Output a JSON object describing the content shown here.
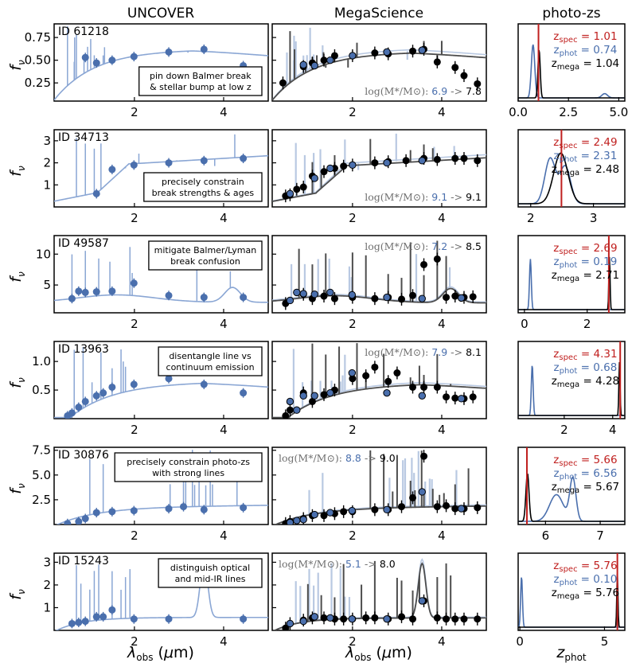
{
  "colors": {
    "uncover": "#4a6fad",
    "uncover_light": "#8aa6d4",
    "mega_light": "#b9c9e2",
    "black": "#000000",
    "gray": "#4d4d4d",
    "spec": "#c0201f",
    "phot": "#4a6fad"
  },
  "columns": {
    "uncover": "UNCOVER",
    "mega": "MegaScience",
    "photoz": "photo-zs"
  },
  "labels": {
    "ylabel": "f_ν",
    "xlabel_sed": "λobs (μm)",
    "xlabel_pz": "zphot",
    "mass_prefix": "log(M*/M⊙):",
    "arrow": "->",
    "zspec": "zspec =",
    "zphot": "zphot =",
    "zmega": "zmega ="
  },
  "chart_data": [
    {
      "type": "line",
      "id": "ID 61218",
      "annotation": [
        "pin down Balmer break",
        "& stellar bump at low z"
      ],
      "sed_xlim": [
        0.2,
        5.0
      ],
      "sed_ylim": [
        0.05,
        0.9
      ],
      "sed_yticks": [
        0.25,
        0.5,
        0.75
      ],
      "sed_yticklabels": [
        "0.25",
        "0.50",
        "0.75"
      ],
      "sed_xticks": [
        2,
        4
      ],
      "uncover_phot": {
        "x": [
          0.9,
          1.15,
          1.5,
          1.99,
          2.77,
          3.56,
          4.44
        ],
        "y": [
          0.53,
          0.47,
          0.5,
          0.54,
          0.59,
          0.62,
          0.44
        ]
      },
      "mega_black": {
        "x": [
          0.44,
          0.9,
          1.1,
          1.36,
          1.6,
          2.0,
          2.5,
          2.8,
          3.35,
          3.6,
          3.9,
          4.3,
          4.5,
          4.8
        ],
        "y": [
          0.25,
          0.43,
          0.47,
          0.5,
          0.55,
          0.55,
          0.58,
          0.57,
          0.6,
          0.62,
          0.48,
          0.42,
          0.33,
          0.24
        ]
      },
      "mega_blue": {
        "x": [
          0.9,
          1.15,
          1.5,
          2.0,
          2.77,
          3.56
        ],
        "y": [
          0.45,
          0.44,
          0.5,
          0.55,
          0.59,
          0.61
        ]
      },
      "mass_blue": "6.9",
      "mass_black": "7.8",
      "mass_pos": "bottom-right",
      "pz_xlim": [
        0,
        5.3
      ],
      "pz_xticks": [
        0,
        2.5,
        5
      ],
      "pz_xticklabels": [
        "0.0",
        "2.5",
        "5.0"
      ],
      "zspec": "1.01",
      "zphot": "0.74",
      "zmega": "1.04",
      "zspec_val": 1.01
    },
    {
      "type": "line",
      "id": "ID 34713",
      "annotation": [
        "precisely constrain",
        "break strengths & ages"
      ],
      "sed_xlim": [
        0.2,
        5.0
      ],
      "sed_ylim": [
        0.0,
        3.5
      ],
      "sed_yticks": [
        1,
        2,
        3
      ],
      "sed_yticklabels": [
        "1",
        "2",
        "3"
      ],
      "sed_xticks": [
        2,
        4
      ],
      "uncover_phot": {
        "x": [
          1.15,
          1.5,
          1.99,
          2.77,
          3.56,
          4.44
        ],
        "y": [
          0.6,
          1.7,
          1.9,
          2.0,
          2.1,
          2.2
        ]
      },
      "mega_black": {
        "x": [
          0.5,
          0.6,
          0.75,
          0.9,
          1.1,
          1.36,
          1.6,
          1.8,
          2.0,
          2.5,
          2.8,
          3.2,
          3.6,
          3.9,
          4.3,
          4.5,
          4.8
        ],
        "y": [
          0.5,
          0.55,
          0.8,
          0.9,
          1.4,
          1.6,
          1.75,
          1.85,
          1.9,
          2.0,
          2.05,
          2.1,
          2.2,
          2.15,
          2.2,
          2.2,
          2.1
        ]
      },
      "mega_blue": {
        "x": [
          0.6,
          1.15,
          1.5,
          2.0,
          2.77,
          3.56
        ],
        "y": [
          0.6,
          1.3,
          1.75,
          1.9,
          2.0,
          2.1
        ]
      },
      "mass_blue": "9.1",
      "mass_black": "9.1",
      "mass_pos": "bottom-right",
      "pz_xlim": [
        1.8,
        3.5
      ],
      "pz_xticks": [
        2,
        3
      ],
      "pz_xticklabels": [
        "2",
        "3"
      ],
      "zspec": "2.49",
      "zphot": "2.31",
      "zmega": "2.48",
      "zspec_val": 2.49
    },
    {
      "type": "line",
      "id": "ID 49587",
      "annotation": [
        "mitigate Balmer/Lyman",
        "break confusion"
      ],
      "sed_xlim": [
        0.2,
        5.0
      ],
      "sed_ylim": [
        0.5,
        13
      ],
      "sed_yticks": [
        5,
        10
      ],
      "sed_yticklabels": [
        "5",
        "10"
      ],
      "sed_xticks": [
        2,
        4
      ],
      "uncover_phot": {
        "x": [
          0.6,
          0.75,
          0.9,
          1.15,
          1.5,
          1.99,
          2.77,
          3.56,
          4.44
        ],
        "y": [
          2.8,
          4.0,
          3.8,
          3.9,
          4.0,
          5.3,
          3.3,
          3.0,
          3.0
        ]
      },
      "mega_black": {
        "x": [
          0.5,
          0.9,
          1.1,
          1.36,
          1.6,
          2.0,
          2.5,
          2.8,
          3.1,
          3.35,
          3.6,
          3.9,
          4.1,
          4.3,
          4.5,
          4.7
        ],
        "y": [
          2.0,
          3.5,
          2.8,
          3.2,
          2.8,
          3.0,
          2.8,
          3.0,
          2.7,
          3.3,
          8.3,
          9.2,
          3.0,
          3.2,
          3.0,
          3.1
        ]
      },
      "mega_blue": {
        "x": [
          0.6,
          0.75,
          0.9,
          1.15,
          1.5,
          1.99,
          2.77,
          3.56,
          4.44
        ],
        "y": [
          2.5,
          3.8,
          3.6,
          3.5,
          3.8,
          3.4,
          3.0,
          2.8,
          2.9
        ]
      },
      "mass_blue": "7.2",
      "mass_black": "8.5",
      "mass_pos": "top-right",
      "pz_xlim": [
        -0.2,
        3.2
      ],
      "pz_xticks": [
        0,
        2
      ],
      "pz_xticklabels": [
        "0",
        "2"
      ],
      "zspec": "2.69",
      "zphot": "0.19",
      "zmega": "2.71",
      "zspec_val": 2.69
    },
    {
      "type": "line",
      "id": "ID 13963",
      "annotation": [
        "disentangle line vs",
        "continuum emission"
      ],
      "sed_xlim": [
        0.2,
        5.0
      ],
      "sed_ylim": [
        0.0,
        1.35
      ],
      "sed_yticks": [
        0.5,
        1.0
      ],
      "sed_yticklabels": [
        "0.5",
        "1.0"
      ],
      "sed_xticks": [
        2,
        4
      ],
      "uncover_phot": {
        "x": [
          0.5,
          0.6,
          0.75,
          0.9,
          1.15,
          1.3,
          1.5,
          1.99,
          2.77,
          3.56,
          4.44
        ],
        "y": [
          0.05,
          0.1,
          0.2,
          0.3,
          0.4,
          0.45,
          0.55,
          0.6,
          0.7,
          0.6,
          0.45
        ]
      },
      "mega_black": {
        "x": [
          0.5,
          0.6,
          0.9,
          1.1,
          1.36,
          1.6,
          2.0,
          2.3,
          2.5,
          2.8,
          3.0,
          3.35,
          3.6,
          3.9,
          4.1,
          4.3,
          4.5,
          4.7
        ],
        "y": [
          0.05,
          0.15,
          0.45,
          0.3,
          0.42,
          0.5,
          0.7,
          0.75,
          0.9,
          0.65,
          0.8,
          0.55,
          0.55,
          0.55,
          0.38,
          0.36,
          0.35,
          0.38
        ]
      },
      "mega_blue": {
        "x": [
          0.6,
          0.75,
          0.9,
          1.15,
          1.5,
          1.99,
          2.77,
          3.56,
          4.44
        ],
        "y": [
          0.3,
          0.15,
          0.4,
          0.4,
          0.45,
          0.8,
          0.45,
          0.4,
          0.35
        ]
      },
      "mass_blue": "7.9",
      "mass_black": "8.1",
      "mass_pos": "top-right",
      "pz_xlim": [
        0.1,
        4.5
      ],
      "pz_xticks": [
        2,
        4
      ],
      "pz_xticklabels": [
        "2",
        "4"
      ],
      "zspec": "4.31",
      "zphot": "0.68",
      "zmega": "4.28",
      "zspec_val": 4.31
    },
    {
      "type": "line",
      "id": "ID 30876",
      "annotation": [
        "precisely constrain photo-zs",
        "with strong lines"
      ],
      "sed_xlim": [
        0.2,
        5.0
      ],
      "sed_ylim": [
        0.0,
        7.8
      ],
      "sed_yticks": [
        2.5,
        5.0,
        7.5
      ],
      "sed_yticklabels": [
        "2.5",
        "5.0",
        "7.5"
      ],
      "sed_xticks": [
        2,
        4
      ],
      "uncover_phot": {
        "x": [
          0.5,
          0.75,
          0.9,
          1.15,
          1.5,
          1.99,
          2.77,
          3.1,
          3.56,
          4.44
        ],
        "y": [
          0.1,
          0.3,
          0.6,
          1.2,
          1.3,
          1.4,
          1.6,
          1.8,
          1.5,
          1.7
        ]
      },
      "mega_black": {
        "x": [
          0.5,
          0.6,
          0.9,
          1.1,
          1.36,
          1.6,
          1.8,
          2.0,
          2.5,
          2.8,
          3.1,
          3.35,
          3.6,
          3.9,
          4.1,
          4.3,
          4.5,
          4.8
        ],
        "y": [
          0.1,
          0.3,
          0.6,
          0.9,
          0.9,
          1.1,
          1.3,
          1.3,
          1.5,
          1.5,
          1.8,
          2.7,
          6.9,
          1.8,
          1.9,
          1.6,
          1.6,
          1.7
        ]
      },
      "mega_blue": {
        "x": [
          0.6,
          0.75,
          0.9,
          1.15,
          1.5,
          1.99,
          2.77,
          3.56,
          4.44
        ],
        "y": [
          0.2,
          0.4,
          0.5,
          1.0,
          1.2,
          1.4,
          1.5,
          3.3,
          1.6
        ]
      },
      "mass_blue": "8.8",
      "mass_black": "9.0",
      "mass_pos": "top-left",
      "pz_xlim": [
        5.5,
        7.45
      ],
      "pz_xticks": [
        6,
        7
      ],
      "pz_xticklabels": [
        "6",
        "7"
      ],
      "zspec": "5.66",
      "zphot": "6.56",
      "zmega": "5.67",
      "zspec_val": 5.66
    },
    {
      "type": "line",
      "id": "ID 15243",
      "annotation": [
        "distinguish optical",
        "and mid-IR lines"
      ],
      "sed_xlim": [
        0.2,
        5.0
      ],
      "sed_ylim": [
        0.0,
        3.4
      ],
      "sed_yticks": [
        1,
        2,
        3
      ],
      "sed_yticklabels": [
        "1",
        "2",
        "3"
      ],
      "sed_xticks": [
        2,
        4
      ],
      "uncover_phot": {
        "x": [
          0.6,
          0.75,
          0.9,
          1.15,
          1.3,
          1.5,
          1.99,
          2.77,
          3.56,
          4.44
        ],
        "y": [
          0.3,
          0.35,
          0.4,
          0.6,
          0.6,
          0.9,
          0.5,
          0.5,
          2.6,
          0.5
        ]
      },
      "mega_black": {
        "x": [
          0.5,
          0.6,
          0.9,
          1.1,
          1.36,
          1.6,
          1.8,
          2.0,
          2.3,
          2.5,
          2.8,
          3.1,
          3.35,
          3.6,
          3.9,
          4.1,
          4.3,
          4.5,
          4.8
        ],
        "y": [
          0.1,
          0.3,
          0.45,
          0.55,
          0.55,
          0.5,
          0.5,
          0.5,
          0.55,
          0.55,
          0.5,
          0.6,
          0.5,
          1.3,
          0.55,
          0.5,
          0.5,
          0.5,
          0.5
        ]
      },
      "mega_blue": {
        "x": [
          0.6,
          0.9,
          1.15,
          1.5,
          1.99,
          2.77,
          3.56
        ],
        "y": [
          0.3,
          0.4,
          0.6,
          0.55,
          0.5,
          0.5,
          1.3
        ]
      },
      "mass_blue": "5.1",
      "mass_black": "8.0",
      "mass_pos": "top-left",
      "pz_xlim": [
        -0.1,
        6.2
      ],
      "pz_xticks": [
        0,
        5
      ],
      "pz_xticklabels": [
        "0",
        "5"
      ],
      "zspec": "5.76",
      "zphot": "0.10",
      "zmega": "5.76",
      "zspec_val": 5.76
    }
  ]
}
